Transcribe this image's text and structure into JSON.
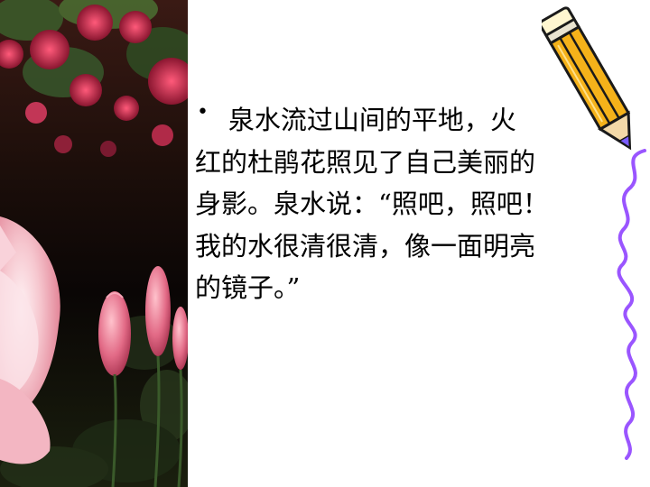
{
  "slide": {
    "bullet": "•",
    "lines": [
      "    泉水流过山间的平地，火",
      "红的杜鹃花照见了自己美丽的",
      "身影。泉水说：“照吧，照吧！",
      "我的水很清很清，像一面明亮",
      "的镜子。”"
    ]
  },
  "decor": {
    "photo": "azalea-flowers-photo",
    "pencil": "pencil-icon",
    "squiggle": "purple-squiggle-line",
    "colors": {
      "pencil_body": "#f5b21a",
      "pencil_outline": "#1a1a1a",
      "pencil_tip": "#7a5cff",
      "squiggle": "#9a55ff"
    }
  }
}
